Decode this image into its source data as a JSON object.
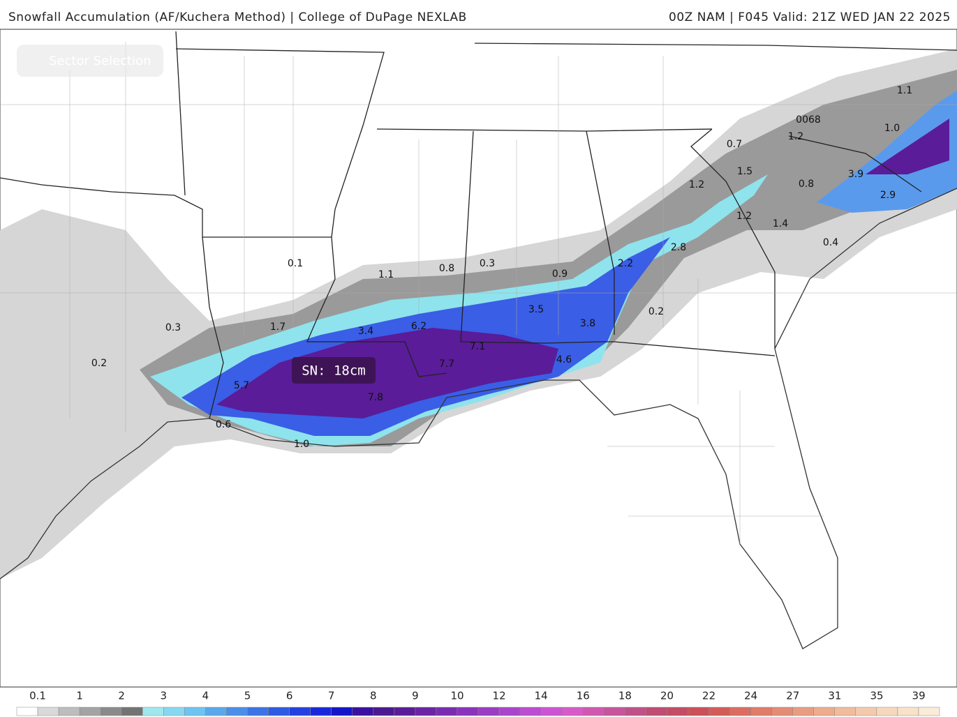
{
  "header": {
    "left": "Snowfall Accumulation (AF/Kuchera Method) | College of DuPage NEXLAB",
    "right": "00Z NAM | F045 Valid: 21Z WED JAN 22 2025"
  },
  "sector_button": "Sector Selection",
  "map_labels": [
    "0.1",
    "1.1",
    "0.8",
    "0.3",
    "0.9",
    "2.2",
    "2.8",
    "1.2",
    "0.7",
    "1.5",
    "1.2",
    "0068",
    "1.1",
    "1.0",
    "3.9",
    "0.8",
    "2.9",
    "1.2",
    "1.4",
    "0.4",
    "0.2",
    "3.5",
    "3.8",
    "4.6",
    "7.1",
    "7.7",
    "6.2",
    "3.4",
    "1.7",
    "0.3",
    "0.2",
    "5.7",
    "7.8",
    "0.6",
    "1.0"
  ],
  "tooltip": "SN: 18cm",
  "legend": {
    "labels": [
      "0.1",
      "1",
      "2",
      "3",
      "4",
      "5",
      "6",
      "7",
      "8",
      "9",
      "10",
      "12",
      "14",
      "16",
      "18",
      "20",
      "22",
      "24",
      "27",
      "31",
      "35",
      "39"
    ],
    "colors": [
      "#ffffff",
      "#d9d9d9",
      "#bdbdbd",
      "#a3a3a3",
      "#8a8a8a",
      "#737373",
      "#9ee8ee",
      "#86d8f0",
      "#6ec4f0",
      "#5aa8ec",
      "#4a8ee8",
      "#3c74e6",
      "#2e5ae4",
      "#2440e0",
      "#1a28dc",
      "#1414c8",
      "#3a10a0",
      "#4c1890",
      "#5a1c98",
      "#6a24a4",
      "#7a2cb0",
      "#8a34bc",
      "#9a3cc4",
      "#aa44cc",
      "#bc4cd2",
      "#cc54d4",
      "#d85ac8",
      "#d058b0",
      "#c8549c",
      "#c05088",
      "#c04c74",
      "#c44c64",
      "#cc5058",
      "#d45c58",
      "#dc6c60",
      "#e07c68",
      "#e48c74",
      "#e89c80",
      "#eeac8c",
      "#f0bc9c",
      "#f4caac",
      "#f6d8bc",
      "#f8e2c8",
      "#faecd8"
    ]
  }
}
